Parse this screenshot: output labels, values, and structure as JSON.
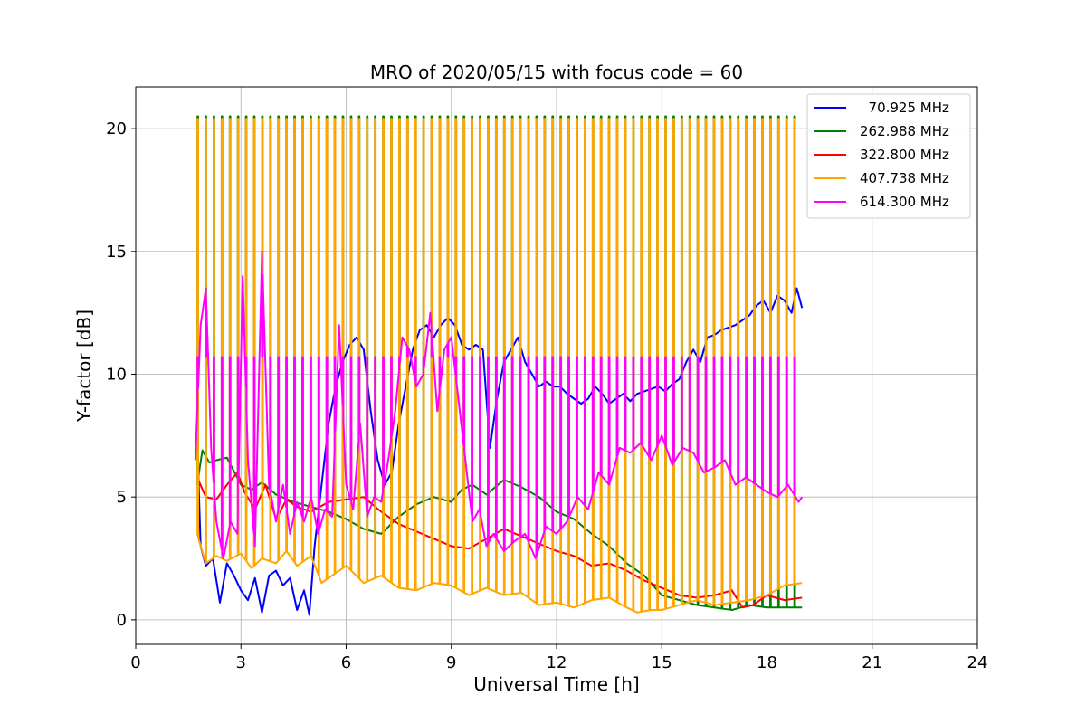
{
  "chart_data": {
    "type": "line",
    "title": "MRO of 2020/05/15 with focus code = 60",
    "xlabel": "Universal Time [h]",
    "ylabel": "Y-factor [dB]",
    "xlim": [
      0,
      24
    ],
    "ylim": [
      -1.0,
      21.7
    ],
    "xticks": [
      0,
      3,
      6,
      9,
      12,
      15,
      18,
      21,
      24
    ],
    "yticks": [
      0,
      5,
      10,
      15,
      20
    ],
    "grid": true,
    "legend_position": "upper right",
    "series": [
      {
        "name": "  70.925 MHz",
        "color": "#0000ff",
        "x": [
          1.75,
          1.85,
          2.0,
          2.2,
          2.4,
          2.6,
          2.8,
          3.0,
          3.2,
          3.4,
          3.6,
          3.8,
          4.0,
          4.2,
          4.4,
          4.6,
          4.8,
          4.95,
          5.1,
          5.3,
          5.5,
          5.7,
          5.9,
          6.1,
          6.3,
          6.5,
          6.7,
          6.9,
          7.1,
          7.3,
          7.5,
          7.7,
          7.9,
          8.1,
          8.3,
          8.5,
          8.7,
          8.9,
          9.1,
          9.3,
          9.5,
          9.7,
          9.9,
          10.1,
          10.3,
          10.5,
          10.7,
          10.9,
          11.1,
          11.3,
          11.5,
          11.7,
          11.9,
          12.1,
          12.3,
          12.5,
          12.7,
          12.9,
          13.1,
          13.3,
          13.5,
          13.7,
          13.9,
          14.1,
          14.3,
          14.5,
          14.7,
          14.9,
          15.1,
          15.3,
          15.5,
          15.7,
          15.9,
          16.1,
          16.3,
          16.5,
          16.7,
          16.9,
          17.1,
          17.3,
          17.5,
          17.7,
          17.9,
          18.1,
          18.3,
          18.5,
          18.7,
          18.85,
          19.0
        ],
        "y": [
          7.5,
          3.0,
          2.2,
          2.5,
          0.7,
          2.3,
          1.8,
          1.2,
          0.8,
          1.7,
          0.3,
          1.8,
          2.0,
          1.4,
          1.7,
          0.4,
          1.2,
          0.2,
          3.0,
          5.5,
          8.0,
          9.5,
          10.5,
          11.2,
          11.5,
          11.0,
          8.5,
          6.5,
          5.5,
          6.0,
          8.0,
          9.5,
          11.0,
          11.8,
          12.0,
          11.5,
          12.0,
          12.3,
          12.0,
          11.2,
          11.0,
          11.2,
          11.0,
          7.0,
          9.0,
          10.5,
          11.0,
          11.5,
          10.5,
          10.0,
          9.5,
          9.7,
          9.5,
          9.5,
          9.2,
          9.0,
          8.8,
          9.0,
          9.5,
          9.2,
          8.8,
          9.0,
          9.2,
          8.9,
          9.2,
          9.3,
          9.4,
          9.5,
          9.3,
          9.6,
          9.8,
          10.5,
          11.0,
          10.5,
          11.5,
          11.6,
          11.8,
          11.9,
          12.0,
          12.2,
          12.4,
          12.8,
          13.0,
          12.5,
          13.2,
          13.0,
          12.5,
          13.5,
          12.7
        ]
      },
      {
        "name": "262.988 MHz",
        "color": "#008000",
        "x": [
          1.75,
          1.9,
          2.1,
          2.3,
          2.6,
          3.0,
          3.3,
          3.6,
          4.0,
          4.5,
          5.0,
          5.5,
          6.0,
          6.5,
          7.0,
          7.5,
          8.0,
          8.5,
          9.0,
          9.3,
          9.6,
          10.0,
          10.5,
          11.0,
          11.5,
          12.0,
          12.5,
          13.0,
          13.5,
          14.0,
          14.5,
          15.0,
          15.5,
          16.0,
          16.5,
          17.0,
          17.5,
          18.0,
          18.5,
          19.0
        ],
        "y": [
          5.5,
          6.9,
          6.4,
          6.5,
          6.6,
          5.5,
          5.3,
          5.6,
          5.1,
          4.8,
          4.6,
          4.4,
          4.1,
          3.7,
          3.5,
          4.2,
          4.7,
          5.0,
          4.8,
          5.3,
          5.5,
          5.1,
          5.7,
          5.4,
          5.0,
          4.4,
          4.1,
          3.5,
          3.0,
          2.3,
          1.8,
          1.0,
          0.8,
          0.6,
          0.5,
          0.4,
          0.6,
          0.5,
          0.5,
          0.5
        ]
      },
      {
        "name": "322.800 MHz",
        "color": "#ff0000",
        "x": [
          1.75,
          2.0,
          2.3,
          2.6,
          2.9,
          3.1,
          3.4,
          3.7,
          4.0,
          4.3,
          4.6,
          5.0,
          5.5,
          6.0,
          6.5,
          7.0,
          7.5,
          8.0,
          8.5,
          9.0,
          9.5,
          10.0,
          10.5,
          11.0,
          11.5,
          12.0,
          12.5,
          13.0,
          13.5,
          14.0,
          14.5,
          15.0,
          15.5,
          16.0,
          16.5,
          17.0,
          17.3,
          17.6,
          18.0,
          18.5,
          19.0
        ],
        "y": [
          5.8,
          5.0,
          4.9,
          5.5,
          6.0,
          5.2,
          4.5,
          5.5,
          4.1,
          4.9,
          4.6,
          4.4,
          4.8,
          4.9,
          5.0,
          4.4,
          3.9,
          3.6,
          3.3,
          3.0,
          2.9,
          3.3,
          3.7,
          3.4,
          3.1,
          2.8,
          2.6,
          2.2,
          2.3,
          2.0,
          1.6,
          1.3,
          1.0,
          0.9,
          1.0,
          1.2,
          0.5,
          0.6,
          1.0,
          0.8,
          0.9
        ]
      },
      {
        "name": "407.738 MHz",
        "color": "#ffa500",
        "x": [
          1.75,
          2.0,
          2.3,
          2.6,
          3.0,
          3.3,
          3.6,
          4.0,
          4.3,
          4.6,
          5.0,
          5.3,
          5.6,
          6.0,
          6.5,
          7.0,
          7.5,
          8.0,
          8.5,
          9.0,
          9.5,
          10.0,
          10.5,
          11.0,
          11.5,
          12.0,
          12.5,
          13.0,
          13.5,
          14.0,
          14.3,
          14.7,
          15.0,
          15.5,
          16.0,
          16.5,
          17.0,
          17.5,
          18.0,
          18.5,
          19.0
        ],
        "y": [
          3.5,
          2.3,
          2.6,
          2.4,
          2.7,
          2.1,
          2.5,
          2.3,
          2.8,
          2.2,
          2.6,
          1.5,
          1.8,
          2.2,
          1.5,
          1.8,
          1.3,
          1.2,
          1.5,
          1.4,
          1.0,
          1.3,
          1.0,
          1.1,
          0.6,
          0.7,
          0.5,
          0.8,
          0.9,
          0.5,
          0.3,
          0.4,
          0.4,
          0.6,
          0.8,
          0.6,
          0.7,
          0.8,
          1.0,
          1.4,
          1.5
        ]
      },
      {
        "name": "614.300 MHz",
        "color": "#ff00ff",
        "x": [
          1.7,
          1.85,
          2.0,
          2.15,
          2.3,
          2.5,
          2.7,
          2.9,
          3.05,
          3.2,
          3.4,
          3.6,
          3.8,
          4.0,
          4.2,
          4.4,
          4.6,
          4.8,
          5.0,
          5.2,
          5.4,
          5.6,
          5.8,
          6.0,
          6.2,
          6.4,
          6.6,
          6.8,
          7.0,
          7.2,
          7.4,
          7.6,
          7.8,
          8.0,
          8.2,
          8.4,
          8.6,
          8.8,
          9.0,
          9.2,
          9.4,
          9.6,
          9.8,
          10.0,
          10.2,
          10.5,
          10.8,
          11.1,
          11.4,
          11.7,
          12.0,
          12.3,
          12.6,
          12.9,
          13.2,
          13.5,
          13.8,
          14.1,
          14.4,
          14.7,
          15.0,
          15.3,
          15.6,
          15.9,
          16.2,
          16.5,
          16.8,
          17.1,
          17.4,
          17.7,
          18.0,
          18.3,
          18.6,
          18.9,
          19.0
        ],
        "y": [
          6.5,
          12.0,
          13.5,
          7.0,
          4.0,
          2.5,
          4.0,
          3.5,
          14.0,
          6.5,
          3.0,
          15.0,
          5.5,
          4.0,
          5.5,
          3.5,
          4.8,
          4.0,
          5.0,
          3.5,
          4.5,
          4.2,
          12.0,
          5.5,
          4.5,
          8.0,
          4.2,
          5.0,
          4.8,
          6.5,
          8.5,
          11.5,
          11.0,
          9.5,
          10.0,
          12.5,
          8.5,
          11.0,
          11.5,
          9.0,
          6.5,
          4.0,
          4.5,
          3.0,
          3.5,
          2.8,
          3.2,
          3.5,
          2.5,
          3.8,
          3.5,
          4.0,
          5.0,
          4.5,
          6.0,
          5.5,
          7.0,
          6.8,
          7.2,
          6.5,
          7.5,
          6.3,
          7.0,
          6.8,
          6.0,
          6.2,
          6.5,
          5.5,
          5.8,
          5.5,
          5.2,
          5.0,
          5.5,
          4.8,
          5.0
        ]
      }
    ],
    "calibration_pulses": {
      "times": [
        1.76,
        1.99,
        2.22,
        2.45,
        2.68,
        2.91,
        3.14,
        3.37,
        3.6,
        3.83,
        4.06,
        4.29,
        4.52,
        4.75,
        4.98,
        5.21,
        5.44,
        5.67,
        5.9,
        6.13,
        6.36,
        6.59,
        6.82,
        7.05,
        7.28,
        7.51,
        7.74,
        7.97,
        8.2,
        8.43,
        8.66,
        8.89,
        9.12,
        9.35,
        9.58,
        9.81,
        10.04,
        10.27,
        10.5,
        10.73,
        10.96,
        11.19,
        11.42,
        11.65,
        11.88,
        12.11,
        12.34,
        12.57,
        12.8,
        13.03,
        13.26,
        13.49,
        13.72,
        13.95,
        14.18,
        14.41,
        14.64,
        14.87,
        15.1,
        15.33,
        15.56,
        15.79,
        16.02,
        16.25,
        16.48,
        16.71,
        16.94,
        17.17,
        17.4,
        17.63,
        17.86,
        18.09,
        18.32,
        18.55,
        18.78
      ],
      "peaks": [
        {
          "series": "262.988 MHz",
          "value": 20.5
        },
        {
          "series": "407.738 MHz",
          "value": 20.4
        },
        {
          "series": "614.300 MHz",
          "value": 10.7
        }
      ]
    }
  }
}
